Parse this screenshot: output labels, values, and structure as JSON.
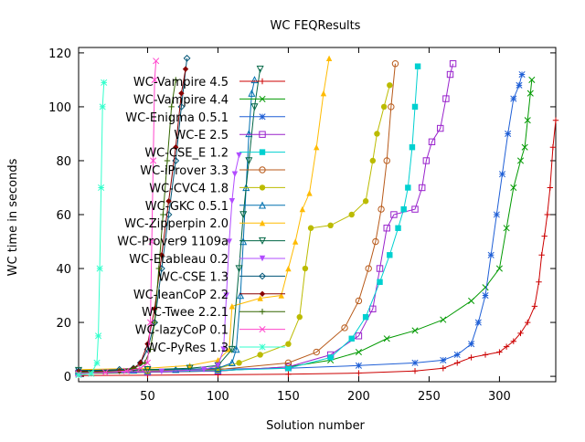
{
  "chart_data": {
    "type": "line",
    "title": "WC FEQResults",
    "xlabel": "Solution number",
    "ylabel": "WC time in seconds",
    "xlim": [
      1,
      340
    ],
    "ylim": [
      -2,
      122
    ],
    "xticks": [
      50,
      100,
      150,
      200,
      250,
      300
    ],
    "yticks": [
      0,
      20,
      40,
      60,
      80,
      100,
      120
    ],
    "grid": false,
    "legend_position": "top-left",
    "series": [
      {
        "name": "WC-Vampire 4.5",
        "color": "#cc0000",
        "marker": "plus",
        "points": [
          [
            1,
            0.3
          ],
          [
            50,
            0.4
          ],
          [
            100,
            0.6
          ],
          [
            150,
            0.8
          ],
          [
            200,
            1.2
          ],
          [
            240,
            2
          ],
          [
            260,
            3
          ],
          [
            270,
            5
          ],
          [
            280,
            7
          ],
          [
            290,
            8
          ],
          [
            300,
            9
          ],
          [
            305,
            11
          ],
          [
            310,
            13
          ],
          [
            315,
            16
          ],
          [
            320,
            20
          ],
          [
            325,
            26
          ],
          [
            328,
            35
          ],
          [
            330,
            45
          ],
          [
            332,
            52
          ],
          [
            334,
            60
          ],
          [
            336,
            70
          ],
          [
            338,
            85
          ],
          [
            340,
            95
          ]
        ]
      },
      {
        "name": "WC-Vampire 4.4",
        "color": "#009900",
        "marker": "cross",
        "points": [
          [
            1,
            1
          ],
          [
            50,
            1.5
          ],
          [
            100,
            2
          ],
          [
            150,
            3.5
          ],
          [
            180,
            6
          ],
          [
            200,
            9
          ],
          [
            220,
            14
          ],
          [
            240,
            17
          ],
          [
            260,
            21
          ],
          [
            280,
            28
          ],
          [
            290,
            33
          ],
          [
            300,
            40
          ],
          [
            305,
            55
          ],
          [
            310,
            70
          ],
          [
            315,
            80
          ],
          [
            318,
            85
          ],
          [
            320,
            95
          ],
          [
            322,
            105
          ],
          [
            323,
            110
          ]
        ]
      },
      {
        "name": "WC-Enigma 0.5.1",
        "color": "#1f5fd6",
        "marker": "star",
        "points": [
          [
            1,
            2
          ],
          [
            50,
            2.5
          ],
          [
            100,
            2.7
          ],
          [
            150,
            3
          ],
          [
            200,
            4
          ],
          [
            240,
            5
          ],
          [
            260,
            6
          ],
          [
            270,
            8
          ],
          [
            280,
            12
          ],
          [
            285,
            20
          ],
          [
            290,
            30
          ],
          [
            294,
            45
          ],
          [
            298,
            60
          ],
          [
            302,
            75
          ],
          [
            306,
            90
          ],
          [
            310,
            103
          ],
          [
            314,
            108
          ],
          [
            316,
            112
          ]
        ]
      },
      {
        "name": "WC-E 2.5",
        "color": "#9922cc",
        "marker": "square-open",
        "points": [
          [
            1,
            1.2
          ],
          [
            50,
            1.6
          ],
          [
            100,
            2
          ],
          [
            150,
            3.5
          ],
          [
            180,
            8
          ],
          [
            200,
            15
          ],
          [
            210,
            25
          ],
          [
            215,
            40
          ],
          [
            220,
            55
          ],
          [
            225,
            60
          ],
          [
            240,
            62
          ],
          [
            245,
            70
          ],
          [
            248,
            80
          ],
          [
            252,
            87
          ],
          [
            258,
            92
          ],
          [
            262,
            103
          ],
          [
            265,
            112
          ],
          [
            267,
            116
          ]
        ]
      },
      {
        "name": "WC-CSE_E 1.2",
        "color": "#00d0d0",
        "marker": "square-filled",
        "points": [
          [
            1,
            1.4
          ],
          [
            50,
            1.8
          ],
          [
            100,
            2.2
          ],
          [
            150,
            3
          ],
          [
            180,
            7
          ],
          [
            195,
            14
          ],
          [
            205,
            22
          ],
          [
            215,
            35
          ],
          [
            222,
            45
          ],
          [
            228,
            55
          ],
          [
            232,
            62
          ],
          [
            235,
            70
          ],
          [
            238,
            85
          ],
          [
            240,
            100
          ],
          [
            242,
            115
          ]
        ]
      },
      {
        "name": "WC-iProver 3.3",
        "color": "#b85a1a",
        "marker": "circle-open",
        "points": [
          [
            1,
            1.6
          ],
          [
            50,
            2
          ],
          [
            100,
            2.5
          ],
          [
            150,
            5
          ],
          [
            170,
            9
          ],
          [
            190,
            18
          ],
          [
            200,
            28
          ],
          [
            207,
            40
          ],
          [
            212,
            50
          ],
          [
            216,
            62
          ],
          [
            220,
            80
          ],
          [
            223,
            100
          ],
          [
            226,
            116
          ]
        ]
      },
      {
        "name": "WC-CVC4 1.8",
        "color": "#bbbb00",
        "marker": "dot",
        "points": [
          [
            1,
            1.8
          ],
          [
            50,
            2.2
          ],
          [
            100,
            3
          ],
          [
            115,
            5
          ],
          [
            130,
            8
          ],
          [
            150,
            12
          ],
          [
            158,
            22
          ],
          [
            162,
            40
          ],
          [
            166,
            55
          ],
          [
            180,
            56
          ],
          [
            195,
            60
          ],
          [
            205,
            65
          ],
          [
            210,
            80
          ],
          [
            213,
            90
          ],
          [
            218,
            100
          ],
          [
            222,
            108
          ]
        ]
      },
      {
        "name": "WC-GKC 0.5.1",
        "color": "#0070b0",
        "marker": "triangle-open",
        "points": [
          [
            1,
            2
          ],
          [
            40,
            2.3
          ],
          [
            70,
            2.5
          ],
          [
            100,
            3
          ],
          [
            110,
            5
          ],
          [
            113,
            10
          ],
          [
            116,
            30
          ],
          [
            118,
            50
          ],
          [
            120,
            70
          ],
          [
            122,
            90
          ],
          [
            124,
            105
          ],
          [
            126,
            110
          ]
        ]
      },
      {
        "name": "WC-Zipperpin 2.0",
        "color": "#ffbb00",
        "marker": "triangle-filled",
        "points": [
          [
            1,
            2.5
          ],
          [
            50,
            3
          ],
          [
            80,
            4
          ],
          [
            100,
            6
          ],
          [
            108,
            10
          ],
          [
            110,
            26
          ],
          [
            130,
            29
          ],
          [
            145,
            30
          ],
          [
            150,
            40
          ],
          [
            155,
            50
          ],
          [
            160,
            62
          ],
          [
            165,
            68
          ],
          [
            170,
            85
          ],
          [
            175,
            105
          ],
          [
            179,
            118
          ]
        ]
      },
      {
        "name": "WC-Prover9 1109a",
        "color": "#006644",
        "marker": "triangle-down-open",
        "points": [
          [
            1,
            2.2
          ],
          [
            50,
            2.5
          ],
          [
            80,
            3
          ],
          [
            100,
            4
          ],
          [
            110,
            10
          ],
          [
            115,
            40
          ],
          [
            118,
            60
          ],
          [
            122,
            80
          ],
          [
            126,
            100
          ],
          [
            130,
            114
          ]
        ]
      },
      {
        "name": "WC-Etableau 0.2",
        "color": "#b24cff",
        "marker": "triangle-down-filled",
        "points": [
          [
            1,
            1.5
          ],
          [
            60,
            1.8
          ],
          [
            90,
            2.5
          ],
          [
            100,
            4
          ],
          [
            104,
            10
          ],
          [
            106,
            30
          ],
          [
            108,
            50
          ],
          [
            110,
            65
          ],
          [
            112,
            75
          ],
          [
            115,
            82
          ]
        ]
      },
      {
        "name": "WC-CSE 1.3",
        "color": "#005577",
        "marker": "diamond-open",
        "points": [
          [
            1,
            2
          ],
          [
            30,
            2.5
          ],
          [
            40,
            3
          ],
          [
            45,
            5
          ],
          [
            50,
            10
          ],
          [
            55,
            20
          ],
          [
            60,
            40
          ],
          [
            65,
            60
          ],
          [
            70,
            80
          ],
          [
            74,
            100
          ],
          [
            78,
            118
          ]
        ]
      },
      {
        "name": "WC-leanCoP 2.2",
        "color": "#880000",
        "marker": "diamond-filled",
        "points": [
          [
            1,
            1.8
          ],
          [
            30,
            2
          ],
          [
            40,
            3
          ],
          [
            45,
            5
          ],
          [
            50,
            12
          ],
          [
            55,
            25
          ],
          [
            60,
            45
          ],
          [
            65,
            65
          ],
          [
            70,
            85
          ],
          [
            74,
            105
          ],
          [
            77,
            114
          ]
        ]
      },
      {
        "name": "WC-Twee 2.2.1",
        "color": "#336600",
        "marker": "plus",
        "points": [
          [
            1,
            1.5
          ],
          [
            30,
            2
          ],
          [
            40,
            3
          ],
          [
            48,
            5
          ],
          [
            52,
            10
          ],
          [
            55,
            20
          ],
          [
            58,
            40
          ],
          [
            61,
            60
          ],
          [
            64,
            80
          ],
          [
            67,
            100
          ],
          [
            70,
            110
          ]
        ]
      },
      {
        "name": "WC-lazyCoP 0.1",
        "color": "#ff44cc",
        "marker": "cross",
        "points": [
          [
            1,
            1
          ],
          [
            20,
            1.5
          ],
          [
            35,
            2
          ],
          [
            45,
            3
          ],
          [
            50,
            5
          ],
          [
            52,
            20
          ],
          [
            53,
            50
          ],
          [
            54,
            80
          ],
          [
            55,
            110
          ],
          [
            56,
            117
          ]
        ]
      },
      {
        "name": "WC-PyRes 1.3",
        "color": "#33ffcc",
        "marker": "star",
        "points": [
          [
            1,
            0.5
          ],
          [
            10,
            1
          ],
          [
            14,
            5
          ],
          [
            15,
            15
          ],
          [
            16,
            40
          ],
          [
            17,
            70
          ],
          [
            18,
            100
          ],
          [
            19,
            109
          ]
        ]
      }
    ]
  }
}
